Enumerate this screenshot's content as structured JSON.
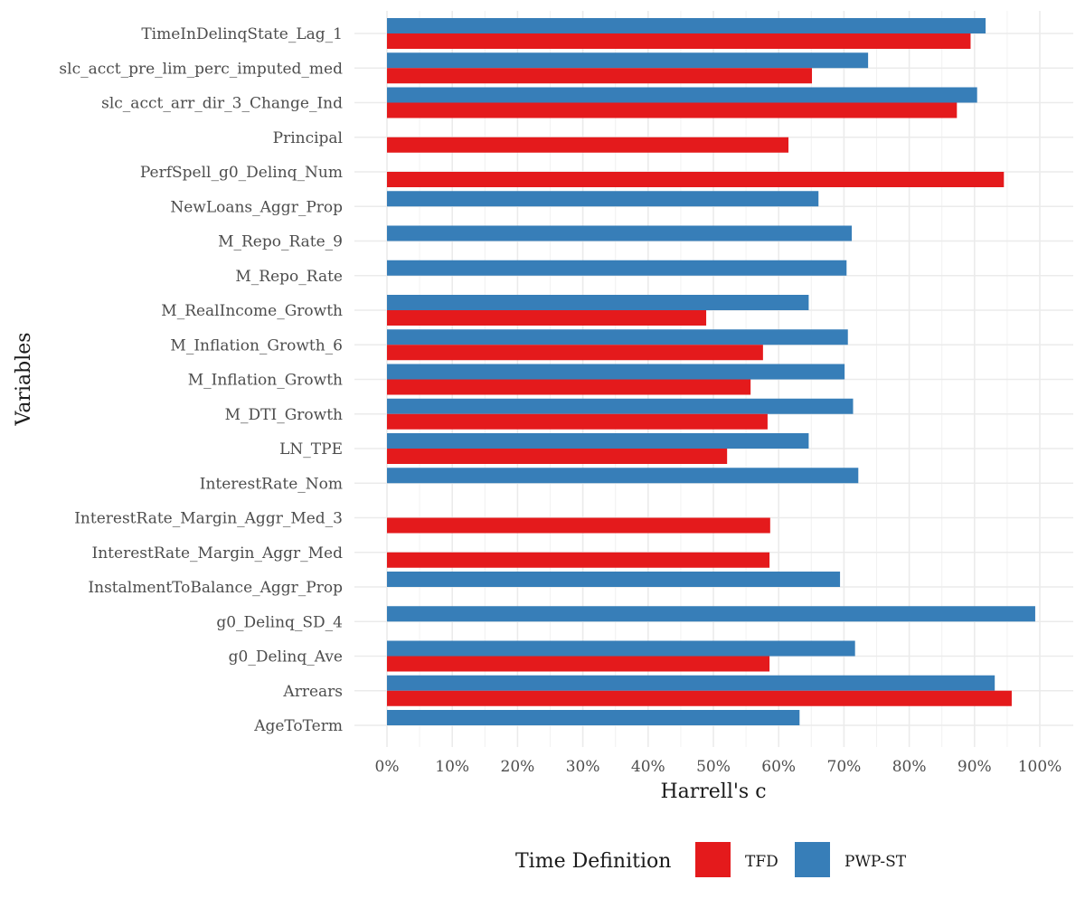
{
  "chart_data": {
    "type": "bar",
    "orientation": "horizontal",
    "xlabel": "Harrell's c",
    "ylabel": "Variables",
    "xlim": [
      0,
      1
    ],
    "x_ticks": [
      "0%",
      "10%",
      "20%",
      "30%",
      "40%",
      "50%",
      "60%",
      "70%",
      "80%",
      "90%",
      "100%"
    ],
    "grid": true,
    "legend_position": "bottom",
    "legend_title": "Time Definition",
    "categories": [
      "TimeInDelinqState_Lag_1",
      "slc_acct_pre_lim_perc_imputed_med",
      "slc_acct_arr_dir_3_Change_Ind",
      "Principal",
      "PerfSpell_g0_Delinq_Num",
      "NewLoans_Aggr_Prop",
      "M_Repo_Rate_9",
      "M_Repo_Rate",
      "M_RealIncome_Growth",
      "M_Inflation_Growth_6",
      "M_Inflation_Growth",
      "M_DTI_Growth",
      "LN_TPE",
      "InterestRate_Nom",
      "InterestRate_Margin_Aggr_Med_3",
      "InterestRate_Margin_Aggr_Med",
      "InstalmentToBalance_Aggr_Prop",
      "g0_Delinq_SD_4",
      "g0_Delinq_Ave",
      "Arrears",
      "AgeToTerm"
    ],
    "series": [
      {
        "name": "PWP-ST",
        "color": "#377eb8",
        "values": [
          0.917,
          0.737,
          0.904,
          null,
          null,
          0.661,
          0.712,
          0.704,
          0.646,
          0.706,
          0.701,
          0.714,
          0.646,
          0.722,
          null,
          null,
          0.694,
          0.993,
          0.717,
          0.931,
          0.632
        ]
      },
      {
        "name": "TFD",
        "color": "#e41a1c",
        "values": [
          0.894,
          0.651,
          0.873,
          0.615,
          0.945,
          null,
          null,
          null,
          0.489,
          0.576,
          0.557,
          0.583,
          0.521,
          null,
          0.587,
          0.586,
          null,
          null,
          0.586,
          0.957,
          null
        ]
      }
    ]
  }
}
